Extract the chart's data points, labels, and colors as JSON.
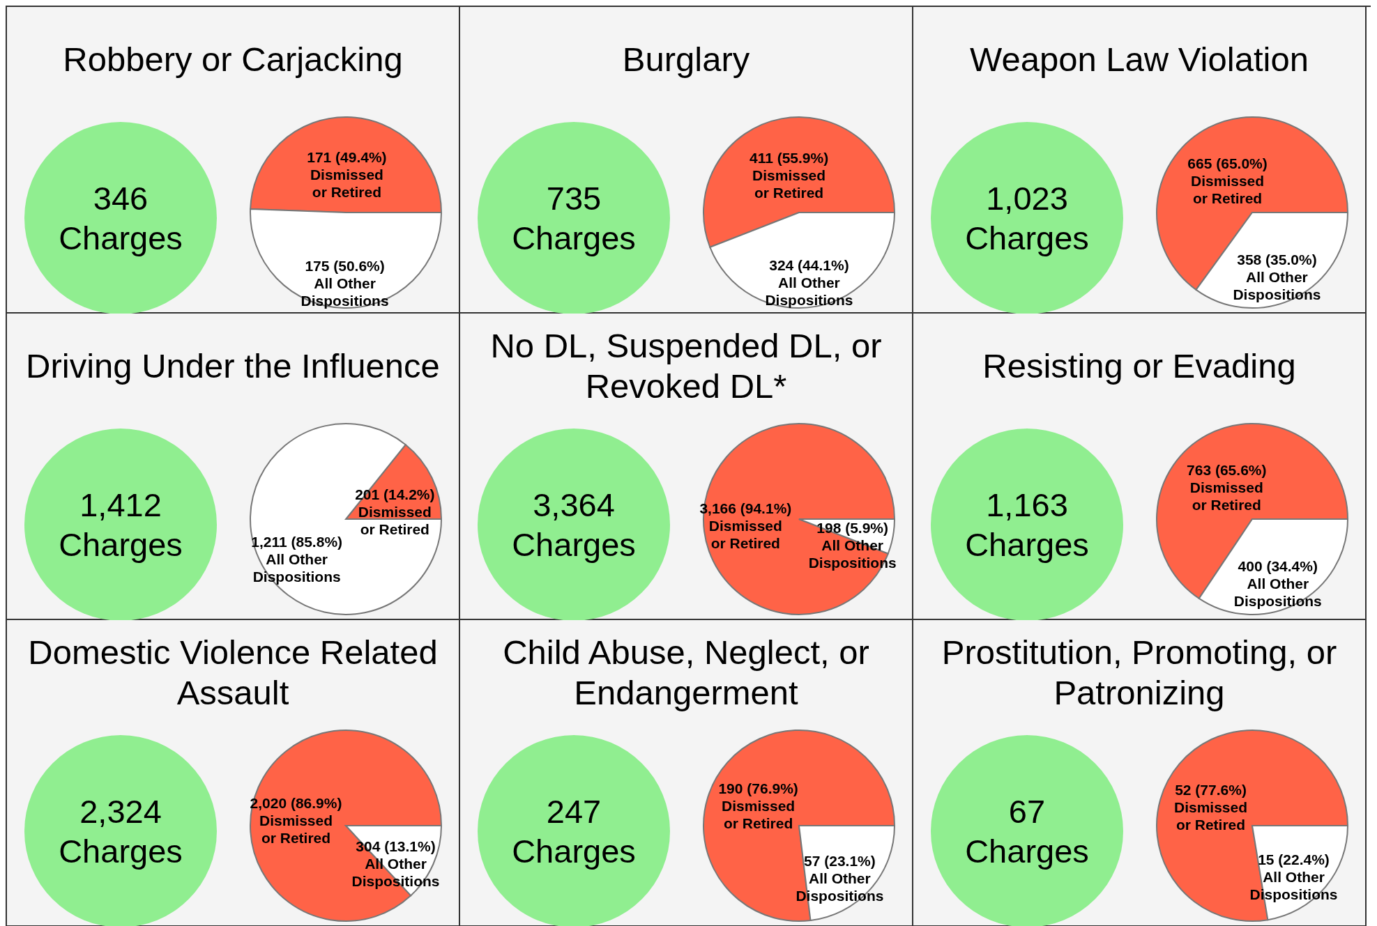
{
  "chart_data": [
    {
      "type": "pie",
      "title": "Robbery or Carjacking",
      "annotations": [
        "346 Charges"
      ],
      "categories": [
        "Dismissed\nor Retired",
        "All Other\nDispositions"
      ],
      "values": [
        171,
        175
      ],
      "value_labels": [
        "171 (49.4%)",
        "175 (50.6%)"
      ],
      "colors": [
        "#ff6347",
        "#ffffff"
      ]
    },
    {
      "type": "pie",
      "title": "Burglary",
      "annotations": [
        "735 Charges"
      ],
      "categories": [
        "Dismissed\nor Retired",
        "All Other\nDispositions"
      ],
      "values": [
        411,
        324
      ],
      "value_labels": [
        "411 (55.9%)",
        "324 (44.1%)"
      ],
      "colors": [
        "#ff6347",
        "#ffffff"
      ]
    },
    {
      "type": "pie",
      "title": "Weapon Law Violation",
      "annotations": [
        "1,023 Charges"
      ],
      "categories": [
        "Dismissed\nor Retired",
        "All Other\nDispositions"
      ],
      "values": [
        665,
        358
      ],
      "value_labels": [
        "665 (65.0%)",
        "358 (35.0%)"
      ],
      "colors": [
        "#ff6347",
        "#ffffff"
      ]
    },
    {
      "type": "pie",
      "title": "Driving Under the Influence",
      "annotations": [
        "1,412 Charges"
      ],
      "categories": [
        "Dismissed\nor Retired",
        "All Other\nDispositions"
      ],
      "values": [
        201,
        1211
      ],
      "value_labels": [
        "201 (14.2%)",
        "1,211 (85.8%)"
      ],
      "colors": [
        "#ff6347",
        "#ffffff"
      ]
    },
    {
      "type": "pie",
      "title": "No DL, Suspended DL, or Revoked DL*",
      "annotations": [
        "3,364 Charges"
      ],
      "categories": [
        "Dismissed\nor Retired",
        "All Other\nDispositions"
      ],
      "values": [
        3166,
        198
      ],
      "value_labels": [
        "3,166 (94.1%)",
        "198 (5.9%)"
      ],
      "colors": [
        "#ff6347",
        "#ffffff"
      ]
    },
    {
      "type": "pie",
      "title": "Resisting or Evading",
      "annotations": [
        "1,163 Charges"
      ],
      "categories": [
        "Dismissed\nor Retired",
        "All Other\nDispositions"
      ],
      "values": [
        763,
        400
      ],
      "value_labels": [
        "763 (65.6%)",
        "400 (34.4%)"
      ],
      "colors": [
        "#ff6347",
        "#ffffff"
      ]
    },
    {
      "type": "pie",
      "title": "Domestic Violence Related Assault",
      "annotations": [
        "2,324 Charges"
      ],
      "categories": [
        "Dismissed\nor Retired",
        "All Other\nDispositions"
      ],
      "values": [
        2020,
        304
      ],
      "value_labels": [
        "2,020 (86.9%)",
        "304 (13.1%)"
      ],
      "colors": [
        "#ff6347",
        "#ffffff"
      ]
    },
    {
      "type": "pie",
      "title": "Child Abuse, Neglect, or Endangerment",
      "annotations": [
        "247 Charges"
      ],
      "categories": [
        "Dismissed\nor Retired",
        "All Other\nDispositions"
      ],
      "values": [
        190,
        57
      ],
      "value_labels": [
        "190 (76.9%)",
        "57 (23.1%)"
      ],
      "colors": [
        "#ff6347",
        "#ffffff"
      ]
    },
    {
      "type": "pie",
      "title": "Prostitution, Promoting, or Patronizing",
      "annotations": [
        "67 Charges"
      ],
      "categories": [
        "Dismissed\nor Retired",
        "All Other\nDispositions"
      ],
      "values": [
        52,
        15
      ],
      "value_labels": [
        "52 (77.6%)",
        "15 (22.4%)"
      ],
      "colors": [
        "#ff6347",
        "#ffffff"
      ]
    }
  ]
}
